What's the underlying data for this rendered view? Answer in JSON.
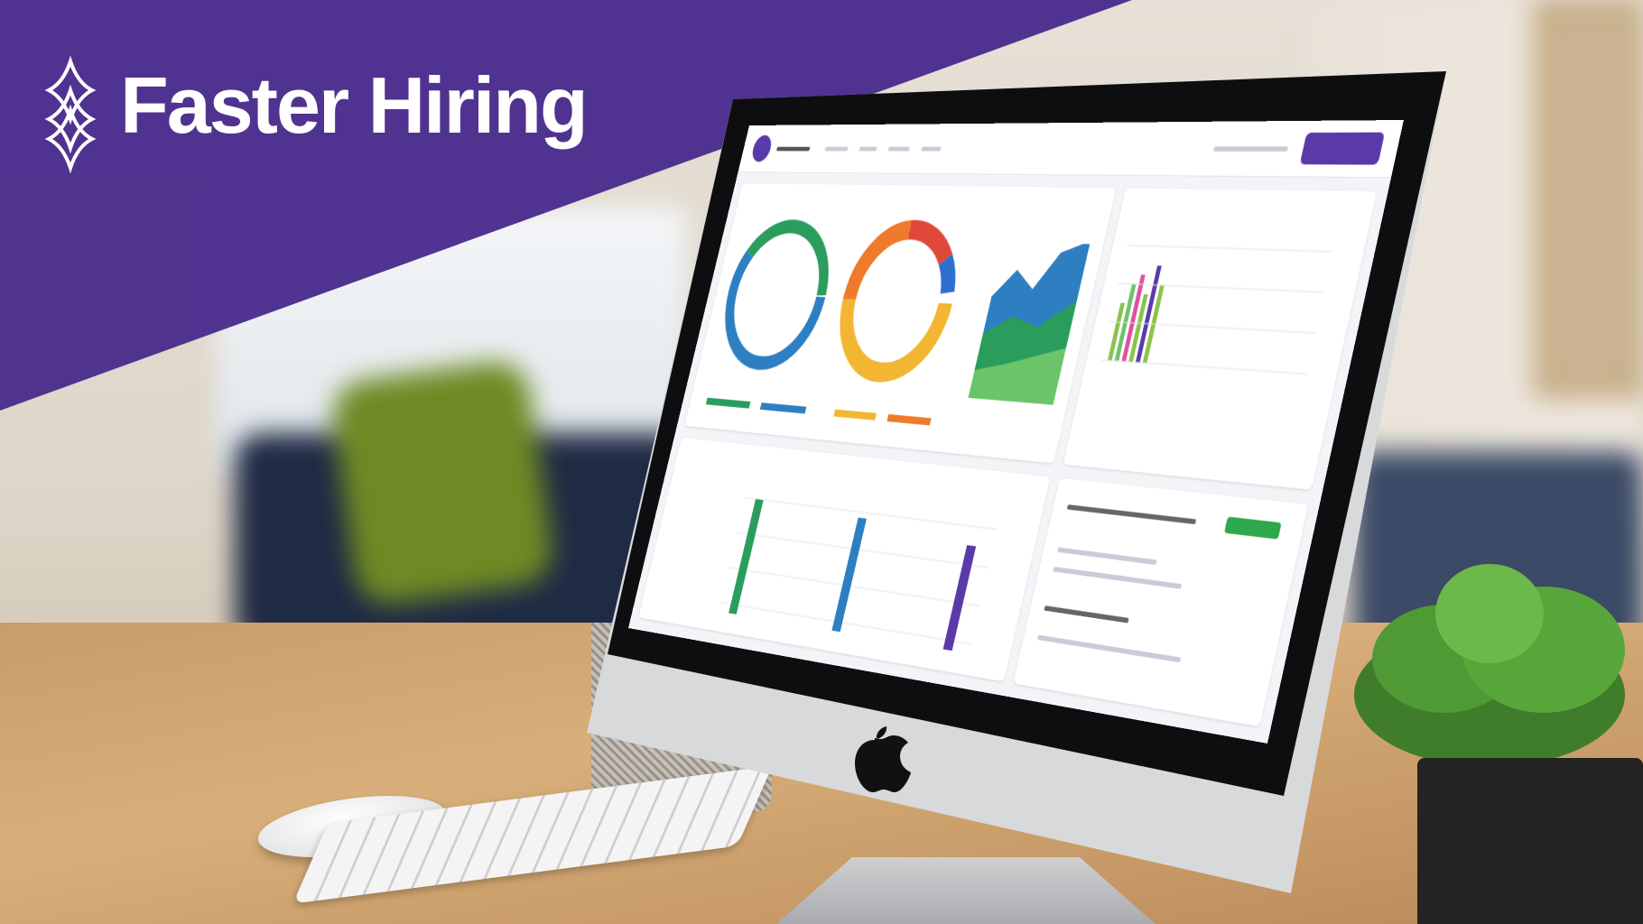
{
  "banner": {
    "title": "Faster Hiring",
    "logo_icon": "stacked-sparkle-diamonds-icon",
    "color": "#4a2c8c",
    "text_color": "#ffffff"
  },
  "monitor": {
    "device": "desktop-computer",
    "logo_icon": "apple-logo-icon",
    "dashboard": {
      "accent": "#5a3aa8",
      "charts": [
        {
          "type": "donut",
          "colors": [
            "#2a9d5c",
            "#2e7fc2",
            "#1f5a9a"
          ]
        },
        {
          "type": "donut",
          "colors": [
            "#f2b632",
            "#f07a2b",
            "#e0483a",
            "#2f6fd0"
          ]
        },
        {
          "type": "area",
          "colors": [
            "#2e7fc2",
            "#2a9d5c",
            "#6cc46a"
          ]
        },
        {
          "type": "bar",
          "colors": [
            "#2a9d5c",
            "#2e7fc2",
            "#5a3aa8"
          ]
        }
      ],
      "status_button_color": "#2ea84a"
    }
  }
}
